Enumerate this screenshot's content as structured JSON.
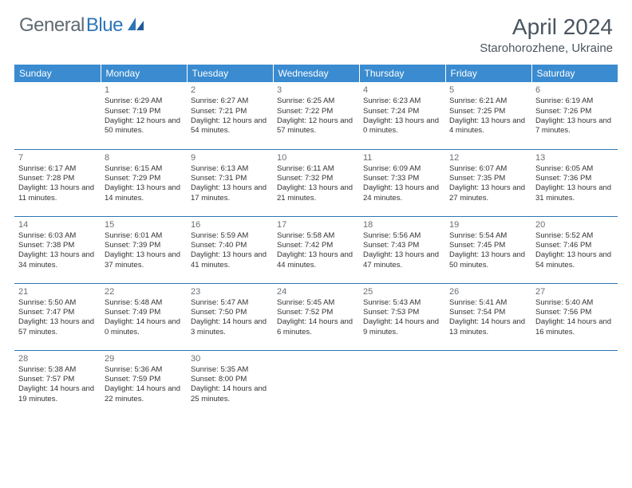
{
  "logo": {
    "text1": "General",
    "text2": "Blue"
  },
  "title": "April 2024",
  "location": "Starohorozhene, Ukraine",
  "colors": {
    "header_bg": "#3a8bd0",
    "header_text": "#ffffff",
    "border": "#2e75b6",
    "text": "#333333",
    "daynum": "#6a6f75",
    "logo_gray": "#5f6a72",
    "logo_blue": "#2e75b6",
    "title_color": "#4a5560"
  },
  "weekdays": [
    "Sunday",
    "Monday",
    "Tuesday",
    "Wednesday",
    "Thursday",
    "Friday",
    "Saturday"
  ],
  "weeks": [
    [
      {
        "day": "",
        "sunrise": "",
        "sunset": "",
        "daylight": ""
      },
      {
        "day": "1",
        "sunrise": "Sunrise: 6:29 AM",
        "sunset": "Sunset: 7:19 PM",
        "daylight": "Daylight: 12 hours and 50 minutes."
      },
      {
        "day": "2",
        "sunrise": "Sunrise: 6:27 AM",
        "sunset": "Sunset: 7:21 PM",
        "daylight": "Daylight: 12 hours and 54 minutes."
      },
      {
        "day": "3",
        "sunrise": "Sunrise: 6:25 AM",
        "sunset": "Sunset: 7:22 PM",
        "daylight": "Daylight: 12 hours and 57 minutes."
      },
      {
        "day": "4",
        "sunrise": "Sunrise: 6:23 AM",
        "sunset": "Sunset: 7:24 PM",
        "daylight": "Daylight: 13 hours and 0 minutes."
      },
      {
        "day": "5",
        "sunrise": "Sunrise: 6:21 AM",
        "sunset": "Sunset: 7:25 PM",
        "daylight": "Daylight: 13 hours and 4 minutes."
      },
      {
        "day": "6",
        "sunrise": "Sunrise: 6:19 AM",
        "sunset": "Sunset: 7:26 PM",
        "daylight": "Daylight: 13 hours and 7 minutes."
      }
    ],
    [
      {
        "day": "7",
        "sunrise": "Sunrise: 6:17 AM",
        "sunset": "Sunset: 7:28 PM",
        "daylight": "Daylight: 13 hours and 11 minutes."
      },
      {
        "day": "8",
        "sunrise": "Sunrise: 6:15 AM",
        "sunset": "Sunset: 7:29 PM",
        "daylight": "Daylight: 13 hours and 14 minutes."
      },
      {
        "day": "9",
        "sunrise": "Sunrise: 6:13 AM",
        "sunset": "Sunset: 7:31 PM",
        "daylight": "Daylight: 13 hours and 17 minutes."
      },
      {
        "day": "10",
        "sunrise": "Sunrise: 6:11 AM",
        "sunset": "Sunset: 7:32 PM",
        "daylight": "Daylight: 13 hours and 21 minutes."
      },
      {
        "day": "11",
        "sunrise": "Sunrise: 6:09 AM",
        "sunset": "Sunset: 7:33 PM",
        "daylight": "Daylight: 13 hours and 24 minutes."
      },
      {
        "day": "12",
        "sunrise": "Sunrise: 6:07 AM",
        "sunset": "Sunset: 7:35 PM",
        "daylight": "Daylight: 13 hours and 27 minutes."
      },
      {
        "day": "13",
        "sunrise": "Sunrise: 6:05 AM",
        "sunset": "Sunset: 7:36 PM",
        "daylight": "Daylight: 13 hours and 31 minutes."
      }
    ],
    [
      {
        "day": "14",
        "sunrise": "Sunrise: 6:03 AM",
        "sunset": "Sunset: 7:38 PM",
        "daylight": "Daylight: 13 hours and 34 minutes."
      },
      {
        "day": "15",
        "sunrise": "Sunrise: 6:01 AM",
        "sunset": "Sunset: 7:39 PM",
        "daylight": "Daylight: 13 hours and 37 minutes."
      },
      {
        "day": "16",
        "sunrise": "Sunrise: 5:59 AM",
        "sunset": "Sunset: 7:40 PM",
        "daylight": "Daylight: 13 hours and 41 minutes."
      },
      {
        "day": "17",
        "sunrise": "Sunrise: 5:58 AM",
        "sunset": "Sunset: 7:42 PM",
        "daylight": "Daylight: 13 hours and 44 minutes."
      },
      {
        "day": "18",
        "sunrise": "Sunrise: 5:56 AM",
        "sunset": "Sunset: 7:43 PM",
        "daylight": "Daylight: 13 hours and 47 minutes."
      },
      {
        "day": "19",
        "sunrise": "Sunrise: 5:54 AM",
        "sunset": "Sunset: 7:45 PM",
        "daylight": "Daylight: 13 hours and 50 minutes."
      },
      {
        "day": "20",
        "sunrise": "Sunrise: 5:52 AM",
        "sunset": "Sunset: 7:46 PM",
        "daylight": "Daylight: 13 hours and 54 minutes."
      }
    ],
    [
      {
        "day": "21",
        "sunrise": "Sunrise: 5:50 AM",
        "sunset": "Sunset: 7:47 PM",
        "daylight": "Daylight: 13 hours and 57 minutes."
      },
      {
        "day": "22",
        "sunrise": "Sunrise: 5:48 AM",
        "sunset": "Sunset: 7:49 PM",
        "daylight": "Daylight: 14 hours and 0 minutes."
      },
      {
        "day": "23",
        "sunrise": "Sunrise: 5:47 AM",
        "sunset": "Sunset: 7:50 PM",
        "daylight": "Daylight: 14 hours and 3 minutes."
      },
      {
        "day": "24",
        "sunrise": "Sunrise: 5:45 AM",
        "sunset": "Sunset: 7:52 PM",
        "daylight": "Daylight: 14 hours and 6 minutes."
      },
      {
        "day": "25",
        "sunrise": "Sunrise: 5:43 AM",
        "sunset": "Sunset: 7:53 PM",
        "daylight": "Daylight: 14 hours and 9 minutes."
      },
      {
        "day": "26",
        "sunrise": "Sunrise: 5:41 AM",
        "sunset": "Sunset: 7:54 PM",
        "daylight": "Daylight: 14 hours and 13 minutes."
      },
      {
        "day": "27",
        "sunrise": "Sunrise: 5:40 AM",
        "sunset": "Sunset: 7:56 PM",
        "daylight": "Daylight: 14 hours and 16 minutes."
      }
    ],
    [
      {
        "day": "28",
        "sunrise": "Sunrise: 5:38 AM",
        "sunset": "Sunset: 7:57 PM",
        "daylight": "Daylight: 14 hours and 19 minutes."
      },
      {
        "day": "29",
        "sunrise": "Sunrise: 5:36 AM",
        "sunset": "Sunset: 7:59 PM",
        "daylight": "Daylight: 14 hours and 22 minutes."
      },
      {
        "day": "30",
        "sunrise": "Sunrise: 5:35 AM",
        "sunset": "Sunset: 8:00 PM",
        "daylight": "Daylight: 14 hours and 25 minutes."
      },
      {
        "day": "",
        "sunrise": "",
        "sunset": "",
        "daylight": ""
      },
      {
        "day": "",
        "sunrise": "",
        "sunset": "",
        "daylight": ""
      },
      {
        "day": "",
        "sunrise": "",
        "sunset": "",
        "daylight": ""
      },
      {
        "day": "",
        "sunrise": "",
        "sunset": "",
        "daylight": ""
      }
    ]
  ]
}
